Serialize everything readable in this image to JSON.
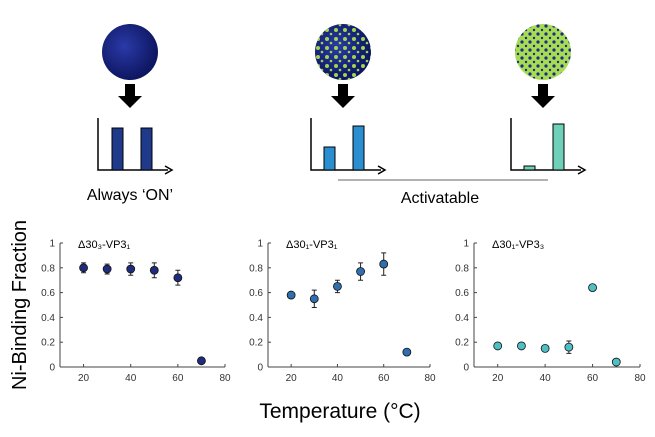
{
  "schematic_labels": [
    "Always ‘ON’",
    "Activatable"
  ],
  "y_label": "Ni-Binding Fraction",
  "x_label": "Temperature (°C)",
  "chart_data": [
    {
      "type": "scatter",
      "title": "Δ30₃-VP3₁",
      "color": "#1f2c7c",
      "x": [
        20,
        30,
        40,
        50,
        60,
        70
      ],
      "values": [
        0.8,
        0.79,
        0.79,
        0.78,
        0.72,
        0.05
      ],
      "errors": [
        0.04,
        0.04,
        0.05,
        0.06,
        0.06,
        null
      ],
      "xlim": [
        10,
        80
      ],
      "xticks": [
        20,
        40,
        60,
        80
      ],
      "ylim": [
        0,
        1
      ],
      "yticks": [
        0,
        0.2,
        0.4,
        0.6,
        0.8,
        1
      ]
    },
    {
      "type": "scatter",
      "title": "Δ30₁-VP3₁",
      "color": "#2f6fb0",
      "x": [
        20,
        30,
        40,
        50,
        60,
        70
      ],
      "values": [
        0.58,
        0.55,
        0.65,
        0.77,
        0.83,
        0.12
      ],
      "errors": [
        null,
        0.07,
        0.05,
        0.07,
        0.09,
        null
      ],
      "xlim": [
        10,
        80
      ],
      "xticks": [
        20,
        40,
        60,
        80
      ],
      "ylim": [
        0,
        1
      ],
      "yticks": [
        0,
        0.2,
        0.4,
        0.6,
        0.8,
        1
      ]
    },
    {
      "type": "scatter",
      "title": "Δ30₁-VP3₃",
      "color": "#4fbfc6",
      "x": [
        20,
        30,
        40,
        50,
        60,
        70
      ],
      "values": [
        0.17,
        0.17,
        0.15,
        0.16,
        0.64,
        0.04
      ],
      "errors": [
        null,
        null,
        null,
        0.05,
        null,
        null
      ],
      "xlim": [
        10,
        80
      ],
      "xticks": [
        20,
        40,
        60,
        80
      ],
      "ylim": [
        0,
        1
      ],
      "yticks": [
        0,
        0.2,
        0.4,
        0.6,
        0.8,
        1
      ]
    }
  ]
}
